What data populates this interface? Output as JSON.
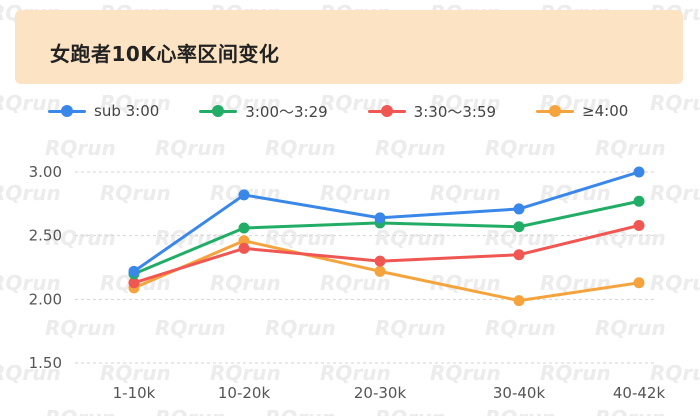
{
  "title": "女跑者10K心率区间变化",
  "watermark": "RQrun",
  "chart_data": {
    "type": "line",
    "categories": [
      "1-10k",
      "10-20k",
      "20-30k",
      "30-40k",
      "40-42k"
    ],
    "ylim": [
      1.5,
      3.0
    ],
    "yticks": [
      "1.50",
      "2.00",
      "2.50",
      "3.00"
    ],
    "ytick_values": [
      1.5,
      2.0,
      2.5,
      3.0
    ],
    "grid": true,
    "legend_position": "top-left",
    "series": [
      {
        "name": "sub 3:00",
        "color": "#3a87ea",
        "values": [
          2.22,
          2.82,
          2.64,
          2.71,
          3.0
        ]
      },
      {
        "name": "3:00～3:29",
        "color": "#22ad67",
        "values": [
          2.2,
          2.56,
          2.6,
          2.57,
          2.77
        ]
      },
      {
        "name": "3:30～3:59",
        "color": "#f05752",
        "values": [
          2.13,
          2.4,
          2.3,
          2.35,
          2.58
        ]
      },
      {
        "name": "≥4:00",
        "color": "#f5a43d",
        "values": [
          2.09,
          2.46,
          2.22,
          1.99,
          2.13
        ]
      }
    ]
  }
}
